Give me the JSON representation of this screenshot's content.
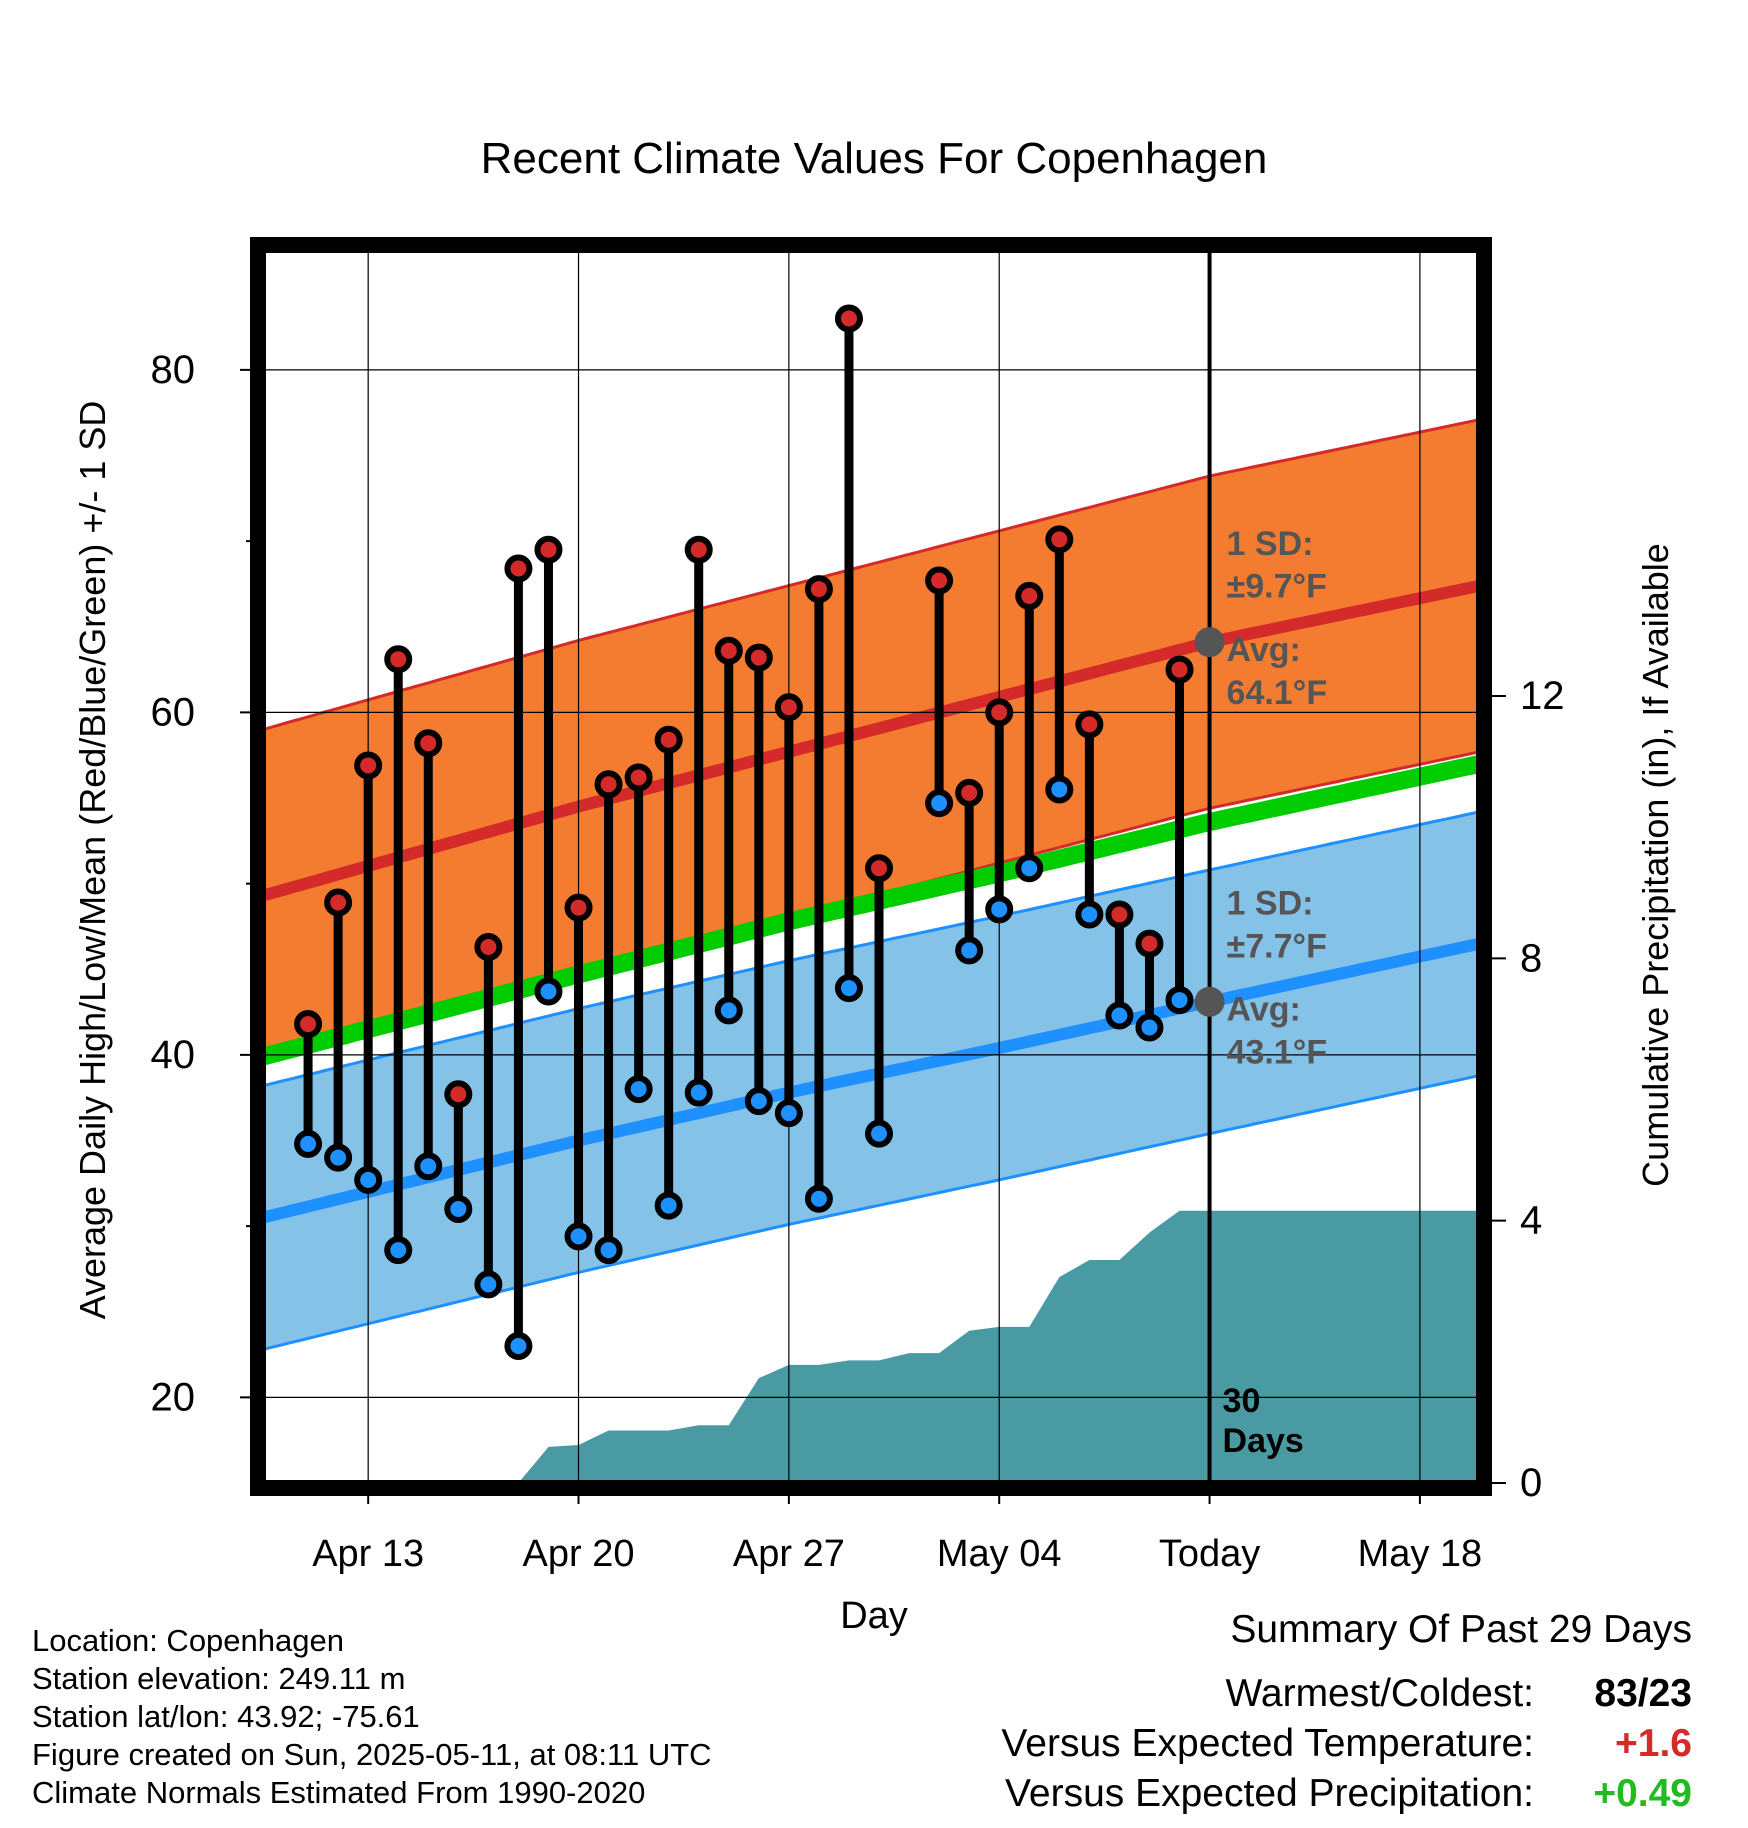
{
  "chart_data": {
    "type": "line",
    "title": "Recent Climate Values For Copenhagen",
    "xlabel": "Day",
    "ylabel": "Average Daily High/Low/Mean (Red/Blue/Green) +/- 1 SD",
    "y2label": "Cumulative Precipitation (in), If Available",
    "x_range_days_from_today": [
      -31.5,
      9
    ],
    "ylim": [
      15,
      87
    ],
    "y2lim": [
      0,
      18.8
    ],
    "grid": true,
    "x_tick_labels": [
      {
        "offset": -28,
        "label": "Apr 13"
      },
      {
        "offset": -21,
        "label": "Apr 20"
      },
      {
        "offset": -14,
        "label": "Apr 27"
      },
      {
        "offset": -7,
        "label": "May 04"
      },
      {
        "offset": 0,
        "label": "Today"
      },
      {
        "offset": 7,
        "label": "May 18"
      }
    ],
    "y_ticks": [
      20,
      40,
      60,
      80
    ],
    "y2_ticks": [
      0,
      4,
      8,
      12
    ],
    "normals": {
      "offsets": [
        -31.5,
        -21,
        -14,
        -7,
        0,
        9
      ],
      "high_mean": [
        49.3,
        54.5,
        57.7,
        60.9,
        64.1,
        67.4
      ],
      "low_mean": [
        30.5,
        35.0,
        37.8,
        40.4,
        43.1,
        46.5
      ],
      "daily_mean": [
        39.9,
        44.7,
        47.8,
        50.6,
        53.6,
        57.0
      ],
      "high_sd": 9.7,
      "low_sd": 7.7
    },
    "daily": {
      "offsets": [
        -30,
        -29,
        -28,
        -27,
        -26,
        -25,
        -24,
        -23,
        -22,
        -21,
        -20,
        -19,
        -18,
        -17,
        -16,
        -15,
        -14,
        -13,
        -12,
        -11,
        -9,
        -8,
        -7,
        -6,
        -5,
        -4,
        -3,
        -2,
        -1
      ],
      "high": [
        41.8,
        48.9,
        56.9,
        63.1,
        58.2,
        37.7,
        46.3,
        68.4,
        69.5,
        48.6,
        55.8,
        56.2,
        58.4,
        69.5,
        63.6,
        63.2,
        60.3,
        67.2,
        83.0,
        50.9,
        67.7,
        55.3,
        60.0,
        66.8,
        70.1,
        59.3,
        48.2,
        46.5,
        62.5
      ],
      "low": [
        34.8,
        34.0,
        32.7,
        28.6,
        33.5,
        31.0,
        26.6,
        23.0,
        43.7,
        29.4,
        28.6,
        38.0,
        31.2,
        37.8,
        42.6,
        37.3,
        36.6,
        31.6,
        43.9,
        35.4,
        54.7,
        46.1,
        48.5,
        50.9,
        55.5,
        48.2,
        42.3,
        41.6,
        43.2
      ]
    },
    "precip_cumulative": {
      "offsets": [
        -23,
        -22,
        -21,
        -20,
        -19,
        -18,
        -17,
        -16,
        -15,
        -14,
        -13,
        -12,
        -11,
        -10,
        -9,
        -8,
        -7,
        -6,
        -5,
        -4,
        -3,
        -2,
        -1,
        0,
        9
      ],
      "values": [
        0,
        0.55,
        0.58,
        0.8,
        0.8,
        0.8,
        0.88,
        0.88,
        1.6,
        1.8,
        1.8,
        1.87,
        1.87,
        1.98,
        1.98,
        2.32,
        2.38,
        2.38,
        3.14,
        3.4,
        3.4,
        3.82,
        4.15,
        4.15,
        4.15
      ]
    },
    "annotations": {
      "high_sd": "1 SD:",
      "high_sd_value": "±9.7°F",
      "high_avg": "Avg:",
      "high_avg_value": "64.1°F",
      "low_sd": "1 SD:",
      "low_sd_value": "±7.7°F",
      "low_avg": "Avg:",
      "low_avg_value": "43.1°F",
      "days_label_1": "30",
      "days_label_2": "Days"
    },
    "colors": {
      "high_band": "#f47c30",
      "high_line": "#d42a2a",
      "low_band": "#85c2e8",
      "low_line": "#1e90ff",
      "mean_line": "#00cc00",
      "precip": "#4a9aa4",
      "high_dot": "#d42a2a",
      "low_dot": "#1e90ff",
      "annotation_text": "#555555"
    }
  },
  "info": {
    "location": "Location: Copenhagen",
    "elevation": "Station elevation: 249.11 m",
    "latlon": "Station lat/lon: 43.92; -75.61",
    "created": "Figure created on Sun, 2025-05-11, at 08:11 UTC",
    "normals": "Climate Normals Estimated From 1990-2020"
  },
  "summary": {
    "title": "Summary Of Past 29 Days",
    "warm_cold_label": "Warmest/Coldest:",
    "warm_cold_value": "83/23",
    "temp_label": "Versus Expected Temperature:",
    "temp_value": "+1.6",
    "temp_color": "#d42a2a",
    "precip_label": "Versus Expected Precipitation:",
    "precip_value": "+0.49",
    "precip_color": "#22bb22"
  }
}
